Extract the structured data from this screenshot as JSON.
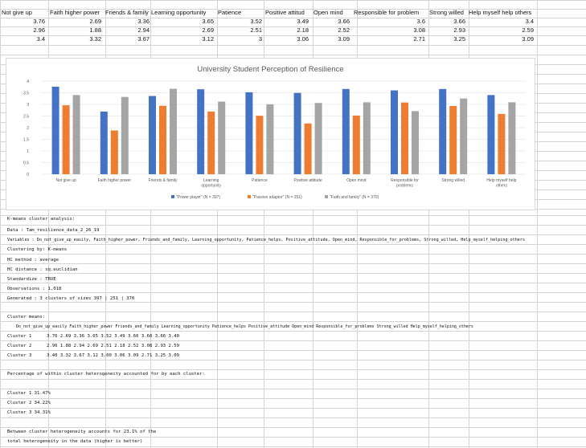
{
  "header_cells": [
    "Not give up",
    "Faith higher power",
    "Friends & family",
    "Learning opportunity",
    "Patience",
    "Positive attitud",
    "Open mind",
    "Responsible for problem",
    "Strong willed",
    "Help myself help others"
  ],
  "top_rows": [
    [
      "3.76",
      "2.69",
      "3.36",
      "3.65",
      "3.52",
      "3.49",
      "3.66",
      "3.6",
      "3.66",
      "3.4"
    ],
    [
      "2.96",
      "1.88",
      "2.94",
      "2.69",
      "2.51",
      "2.18",
      "2.52",
      "3.08",
      "2.93",
      "2.59"
    ],
    [
      "3.4",
      "3.32",
      "3.67",
      "3.12",
      "3",
      "3.06",
      "3.09",
      "2.71",
      "3.25",
      "3.09"
    ]
  ],
  "chart_data": {
    "type": "bar",
    "title": "University Student Perception of Resilience",
    "categories": [
      "Not give up",
      "Faith higher power",
      "Friends & family",
      "Learning opportunity",
      "Patience",
      "Positive attitude",
      "Open mind",
      "Responsible for problems",
      "Strong willed",
      "Help myself help others"
    ],
    "series": [
      {
        "name": "\"Power player\" (N = 397)",
        "color": "#4472c4",
        "values": [
          3.76,
          2.69,
          3.36,
          3.65,
          3.52,
          3.49,
          3.66,
          3.6,
          3.66,
          3.4
        ]
      },
      {
        "name": "\"Passive adaptor\" (N = 251)",
        "color": "#ed7d31",
        "values": [
          2.96,
          1.88,
          2.94,
          2.69,
          2.51,
          2.18,
          2.52,
          3.08,
          2.93,
          2.59
        ]
      },
      {
        "name": "\"Faith and family\" (N = 370)",
        "color": "#a5a5a5",
        "values": [
          3.4,
          3.32,
          3.67,
          3.12,
          3,
          3.06,
          3.09,
          2.71,
          3.25,
          3.09
        ]
      }
    ],
    "ylim": [
      0,
      4
    ],
    "yticks": [
      "0",
      "0.5",
      "1",
      "1.5",
      "2",
      "2.5",
      "3",
      "3.5",
      "4"
    ],
    "grid": true,
    "legend": "bottom"
  },
  "notes": {
    "title": "K-means cluster analysis:",
    "data": "Data   : Tam_resilience_data_2_26_19",
    "variables": "Variables : Do_not_give_up_easily, Faith_higher_power, Friends_and_family, Learning_opportunity, Patience_helps, Positive_attitude, Open_mind, Responsible_for_problems, Strong_willed, Help_myself_helping_others",
    "clustering": "Clustering by: K-means",
    "hc_method": "HC method  : average",
    "hc_distance": "HC distance : sq.euclidian",
    "standardize": "Standardize : TRUE",
    "observations": "Observations : 1,018",
    "generated": "Generated   : 3 clusters of sizes 397 | 251 | 370",
    "means_label": "Cluster means:",
    "means_header": "Do_not_give_up_easily Faith_higher_power Friends_and_family Learning_opportunity Patience_helps Positive_attitude Open_mind Responsible_for_problems Strong_willed Help_myself_helping_others",
    "cluster_rows": [
      {
        "label": "Cluster 1",
        "values": "3.76    2.69    3.36    3.65    3.52    3.49  3.66     3.60    3.66    3.40"
      },
      {
        "label": "Cluster 2",
        "values": "2.96    1.88    2.94    2.69    2.51    2.18  2.52     3.08    2.93    2.59"
      },
      {
        "label": "Cluster 3",
        "values": "3.40    3.32    3.67    3.12    3.00    3.06  3.09     2.71    3.25    3.09"
      }
    ],
    "pct_label": "Percentage of within cluster heterogeneity accounted for by each cluster:",
    "pct_rows": [
      "Cluster 1 31.47%",
      "Cluster 2 34.22%",
      "Cluster 3 34.31%"
    ],
    "between_1": "Between cluster heterogeneity accounts for 23.1% of the",
    "between_2": "total heterogeneity in the data (higher is better)"
  }
}
